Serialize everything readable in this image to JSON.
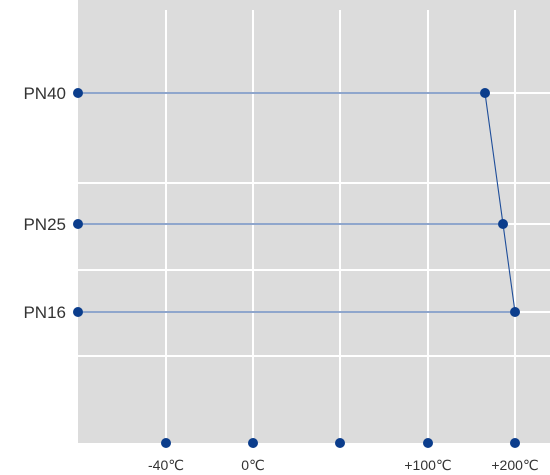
{
  "chart_data": {
    "type": "line",
    "title": "",
    "xlabel": "",
    "ylabel": "",
    "x_ticks": [
      "-40℃",
      "0℃",
      "",
      "+100℃",
      "+200℃"
    ],
    "y_ticks": [
      "PN40",
      "PN25",
      "PN16"
    ],
    "series": [
      {
        "points": [
          {
            "x": "+200℃",
            "y": "PN40"
          },
          {
            "x": "+200℃",
            "y": "PN25"
          },
          {
            "x": "+200℃",
            "y": "PN16"
          }
        ]
      }
    ],
    "grid": true,
    "colors": {
      "background": "#dcdcdc",
      "grid": "#ffffff",
      "marker": "#0b3d8c",
      "line": "#1f4e9a"
    }
  }
}
